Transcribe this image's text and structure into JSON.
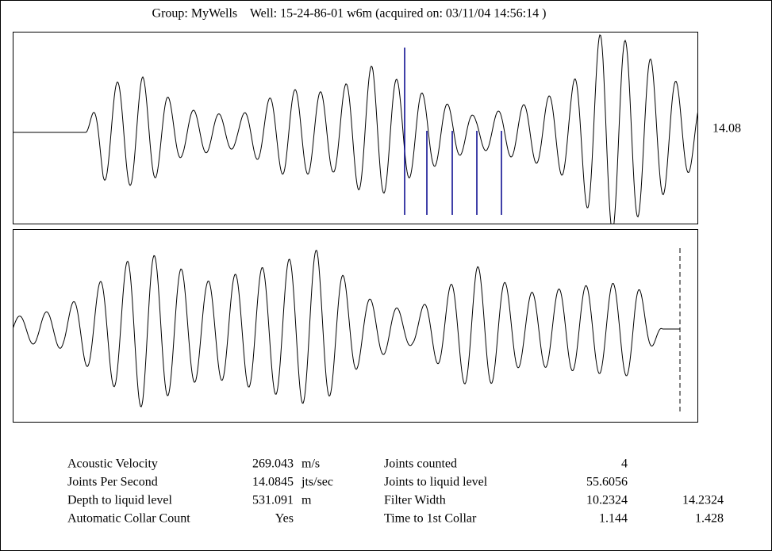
{
  "header": {
    "title": "Group: MyWells    Well: 15-24-86-01 w6m (acquired on: 03/11/04 14:56:14 )"
  },
  "plot": {
    "marker_label": "14.08"
  },
  "params_left": [
    {
      "label": "Acoustic Velocity",
      "value": "269.043",
      "unit": "m/s"
    },
    {
      "label": "Joints Per Second",
      "value": "14.0845",
      "unit": "jts/sec"
    },
    {
      "label": "Depth to liquid level",
      "value": "531.091",
      "unit": "m"
    },
    {
      "label": "Automatic Collar Count",
      "value": "Yes"
    }
  ],
  "params_right": [
    {
      "label": "Joints counted",
      "value": "4"
    },
    {
      "label": "Joints to liquid level",
      "value": "55.6056"
    },
    {
      "label": "Filter Width",
      "value": "10.2324",
      "extra": "14.2324"
    },
    {
      "label": "Time to 1st Collar",
      "value": "1.144",
      "extra": "1.428"
    }
  ]
}
